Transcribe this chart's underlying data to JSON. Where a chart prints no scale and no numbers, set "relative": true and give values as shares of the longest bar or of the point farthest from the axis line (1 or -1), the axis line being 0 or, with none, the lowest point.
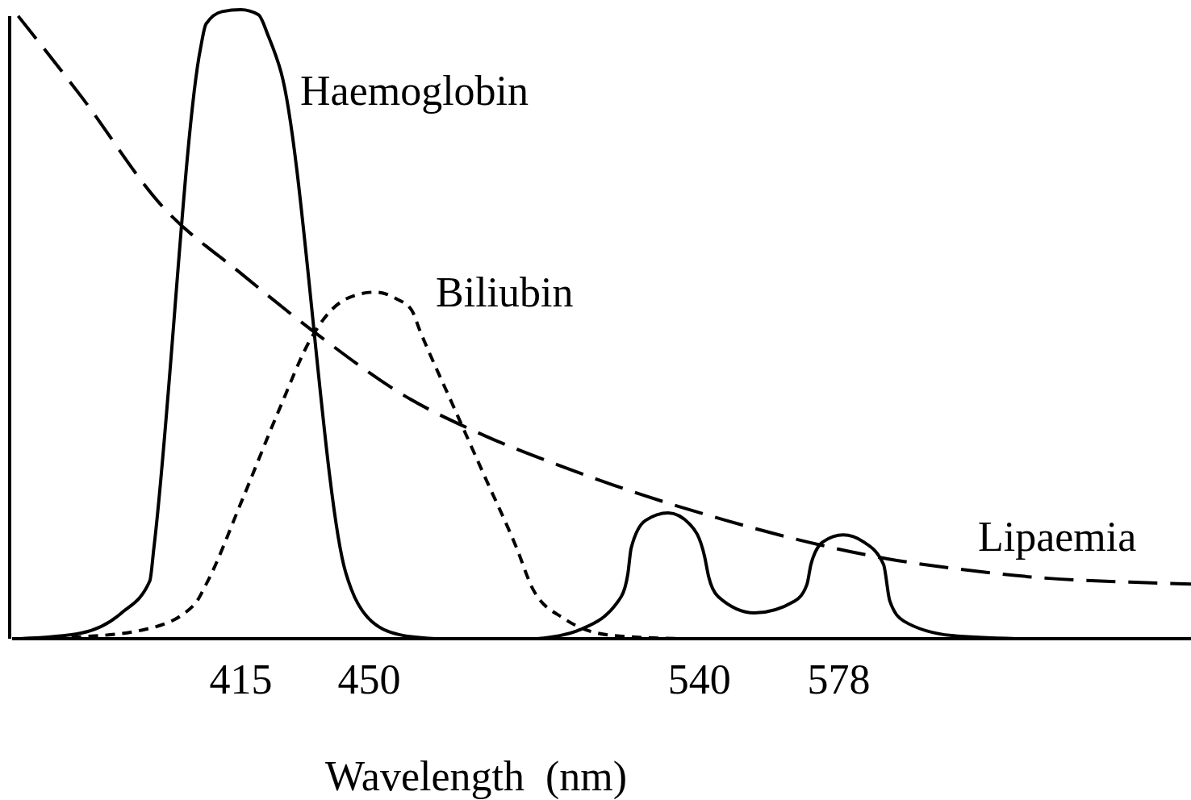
{
  "chart_data": {
    "type": "line",
    "xlabel": "Wavelength  (nm)",
    "relative": true,
    "xlim": [
      352,
      674
    ],
    "xticks": [
      415,
      450,
      540,
      578
    ],
    "grid": false,
    "marker": "none",
    "series": [
      {
        "name": "Haemoglobin",
        "color": "#000000",
        "line_style": "solid",
        "x": [
          355.0,
          371.5,
          382.5,
          390.2,
          391.3,
          404.0,
          405.5,
          409.9,
          415.0,
          419.8,
          422.5,
          426.0,
          443.6,
          445.1,
          450.6,
          459.4,
          468.2,
          482.0,
          495.7,
          507.7,
          518.7,
          520.5,
          521.4,
          525.3,
          531.5,
          537.4,
          541.4,
          542.5,
          545.1,
          555.0,
          566.0,
          569.3,
          570.4,
          573.7,
          579.2,
          584.7,
          590.2,
          591.9,
          595.7,
          608.8,
          626.4
        ],
        "values": [
          0,
          0.009,
          0.041,
          0.092,
          0.144,
          0.938,
          0.977,
          0.997,
          1,
          0.992,
          0.958,
          0.9,
          0.105,
          0.079,
          0.028,
          0.005,
          0,
          null,
          0,
          0.015,
          0.067,
          0.103,
          0.144,
          0.188,
          0.2,
          0.182,
          0.131,
          0.099,
          0.067,
          0.041,
          0.06,
          0.086,
          0.118,
          0.154,
          0.165,
          0.154,
          0.118,
          0.06,
          0.028,
          0.005,
          0
        ]
      },
      {
        "name": "Biliubin",
        "color": "#000000",
        "line_style": "dotted",
        "x": [
          355.0,
          371.5,
          389.1,
          402.3,
          405.5,
          415.4,
          425.3,
          434.1,
          439.6,
          446.2,
          451.7,
          457.2,
          461.6,
          463.8,
          472.6,
          481.4,
          490.2,
          494.6,
          503.4,
          516.5,
          535.2
        ],
        "values": [
          0,
          0.003,
          0.015,
          0.054,
          0.086,
          0.221,
          0.362,
          0.477,
          0.522,
          0.546,
          0.551,
          0.541,
          0.522,
          0.49,
          0.374,
          0.259,
          0.144,
          0.079,
          0.031,
          0.005,
          0
        ]
      },
      {
        "name": "Lipaemia",
        "color": "#000000",
        "line_style": "dashed",
        "x": [
          354.3,
          371.5,
          393.5,
          415.4,
          437.4,
          459.4,
          481.4,
          503.4,
          525.3,
          547.3,
          569.3,
          591.3,
          613.2,
          635.2,
          657.2,
          674
        ],
        "values": [
          0.99,
          0.862,
          0.688,
          0.579,
          0.477,
          0.387,
          0.323,
          0.272,
          0.227,
          0.188,
          0.154,
          0.127,
          0.109,
          0.096,
          0.09,
          0.087
        ]
      }
    ]
  }
}
